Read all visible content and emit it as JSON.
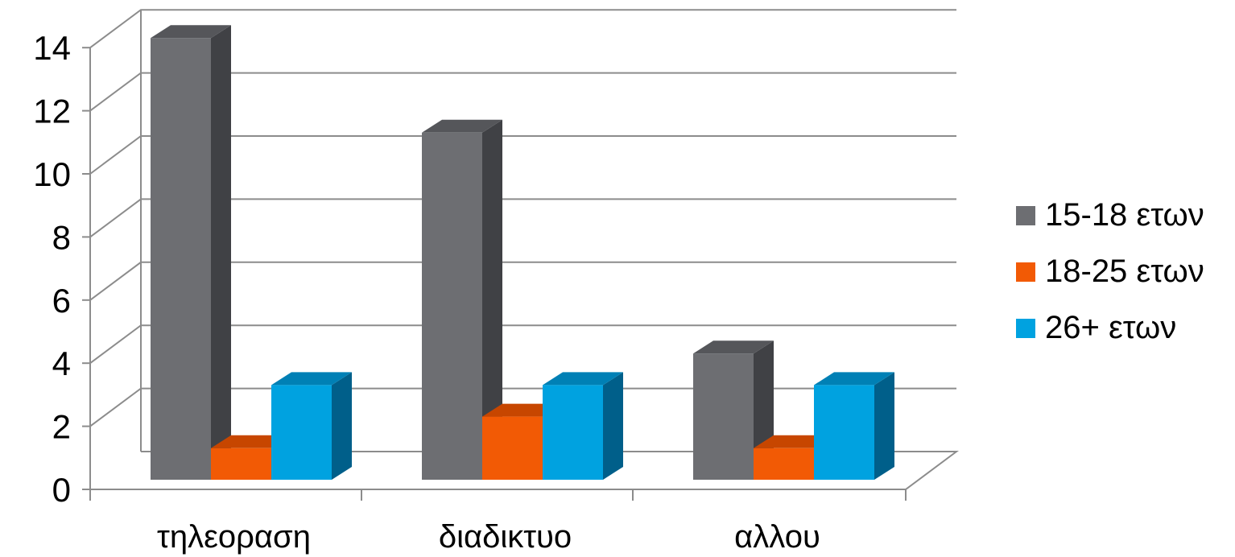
{
  "chart_data": {
    "type": "bar",
    "title": "",
    "xlabel": "",
    "ylabel": "",
    "categories": [
      "τηλεοραση",
      "διαδικτυο",
      "αλλου"
    ],
    "series": [
      {
        "name": "15-18 ετων",
        "values": [
          14,
          11,
          4
        ],
        "color": "#6d6e72",
        "side_color": "#404145",
        "top_color": "#55565a"
      },
      {
        "name": "18-25 ετων",
        "values": [
          1,
          2,
          1
        ],
        "color": "#f25a05",
        "side_color": "#b83e00",
        "top_color": "#c74600"
      },
      {
        "name": "26+ ετων",
        "values": [
          3,
          3,
          3
        ],
        "color": "#00a2e0",
        "side_color": "#005f8a",
        "top_color": "#0080b5"
      }
    ],
    "ylim": [
      0,
      14
    ],
    "yticks": [
      "0",
      "2",
      "4",
      "6",
      "8",
      "10",
      "12",
      "14"
    ],
    "grid": true,
    "legend_position": "right"
  }
}
